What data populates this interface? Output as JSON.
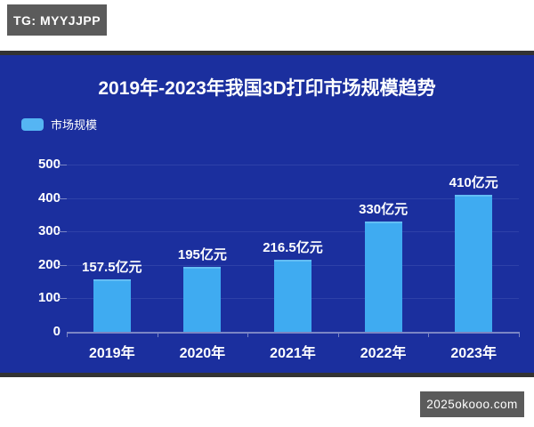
{
  "overlays": {
    "tg_badge": "TG: MYYJJPP",
    "site_badge": "2025okooo.com"
  },
  "chart_data": {
    "type": "bar",
    "title": "2019年-2023年我国3D打印市场规模趋势",
    "legend": [
      "市场规模"
    ],
    "legend_position": "top-left",
    "categories": [
      "2019年",
      "2020年",
      "2021年",
      "2022年",
      "2023年"
    ],
    "values": [
      157.5,
      195,
      216.5,
      330,
      410
    ],
    "value_labels": [
      "157.5亿元",
      "195亿元",
      "216.5亿元",
      "330亿元",
      "410亿元"
    ],
    "unit": "亿元",
    "xlabel": "",
    "ylabel": "",
    "ylim": [
      0,
      500
    ],
    "y_ticks": [
      0,
      100,
      200,
      300,
      400,
      500
    ],
    "grid": true,
    "colors": {
      "panel_bg": "#1b2f9e",
      "bar": "#3fabf1",
      "legend_swatch": "#55b5f3",
      "grid_line": "#2e41a8",
      "axis_line": "#7b86c4",
      "text": "#ffffff",
      "badge_bg": "#5b5b5b",
      "frame_strip": "#333333"
    }
  }
}
